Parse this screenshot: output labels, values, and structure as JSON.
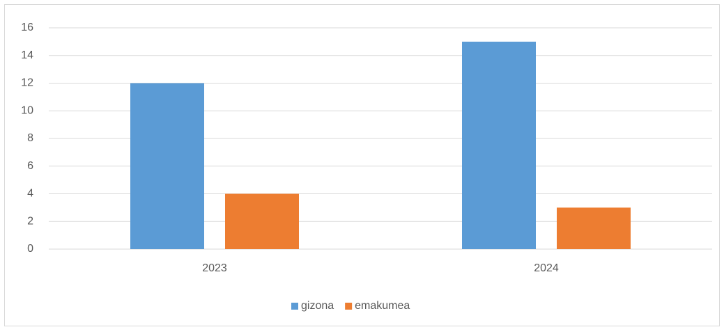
{
  "chart_data": {
    "type": "bar",
    "categories": [
      "2023",
      "2024"
    ],
    "series": [
      {
        "name": "gizona",
        "color": "#5b9bd5",
        "values": [
          12,
          15
        ]
      },
      {
        "name": "emakumea",
        "color": "#ed7d31",
        "values": [
          4,
          3
        ]
      }
    ],
    "ylim": [
      0,
      16
    ],
    "yticks": [
      0,
      2,
      4,
      6,
      8,
      10,
      12,
      14,
      16
    ],
    "grid": true,
    "legend": "bottom"
  }
}
